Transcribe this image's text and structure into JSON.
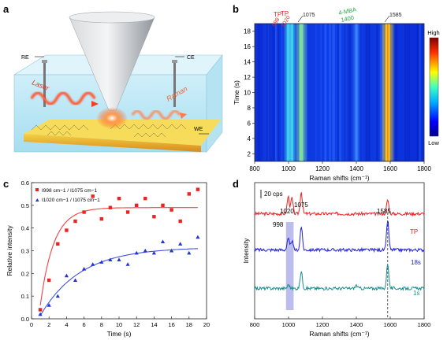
{
  "panels": {
    "a": {
      "letter": "a",
      "labels": {
        "re": "RE",
        "ce": "CE",
        "we": "WE",
        "laser": "Laser",
        "raman": "Raman"
      }
    },
    "b": {
      "letter": "b",
      "annotations": {
        "tp": "TP",
        "tp998": "998",
        "tp1020": "1020",
        "mba": "4-MBA",
        "mba1400": "1400",
        "p1075": "1075",
        "p1585": "1585"
      },
      "colorbar": {
        "high": "High",
        "low": "Low"
      }
    },
    "c": {
      "letter": "c",
      "legend": [
        {
          "text": "I998 cm−1 / I1075 cm−1",
          "color": "#ee2222"
        },
        {
          "text": "I1020 cm−1 / I1075 cm−1",
          "color": "#2233dd"
        }
      ]
    },
    "d": {
      "letter": "d",
      "scalebar": "20 cps",
      "peak_labels": {
        "p998": "998",
        "p1020": "1020",
        "p1075": "1075",
        "p1585": "1585"
      },
      "trace_labels": {
        "tp": "TP",
        "t18": "18s",
        "t1": "1s"
      }
    }
  },
  "chart_data": [
    {
      "panel": "b",
      "type": "heatmap",
      "xlabel": "Raman shifts (cm⁻¹)",
      "ylabel": "Time (s)",
      "xlim": [
        800,
        1800
      ],
      "ylim": [
        1,
        19
      ],
      "xticks": [
        800,
        1000,
        1200,
        1400,
        1600,
        1800
      ],
      "yticks": [
        2,
        4,
        6,
        8,
        10,
        12,
        14,
        16,
        18
      ],
      "bands": [
        {
          "x": 998,
          "intensity": 0.45
        },
        {
          "x": 1020,
          "intensity": 0.4
        },
        {
          "x": 1075,
          "intensity": 0.85
        },
        {
          "x": 1400,
          "intensity": 0.15
        },
        {
          "x": 1585,
          "intensity": 1.0
        }
      ]
    },
    {
      "panel": "c",
      "type": "scatter",
      "xlabel": "Time (s)",
      "ylabel": "Relative intensity",
      "xlim": [
        0,
        20
      ],
      "ylim": [
        0,
        0.6
      ],
      "xticks": [
        0,
        2,
        4,
        6,
        8,
        10,
        12,
        14,
        16,
        18,
        20
      ],
      "yticks": [
        0.0,
        0.1,
        0.2,
        0.3,
        0.4,
        0.5,
        0.6
      ],
      "series": [
        {
          "name": "I998 cm−1 / I1075 cm−1",
          "color": "#ee2222",
          "marker": "square",
          "x": [
            1,
            2,
            3,
            4,
            5,
            6,
            7,
            8,
            9,
            10,
            11,
            12,
            13,
            14,
            15,
            16,
            17,
            18,
            19
          ],
          "y": [
            0.04,
            0.17,
            0.33,
            0.39,
            0.43,
            0.47,
            0.54,
            0.44,
            0.49,
            0.53,
            0.47,
            0.5,
            0.53,
            0.45,
            0.5,
            0.48,
            0.43,
            0.55,
            0.57
          ],
          "fit": {
            "a": 0.49,
            "k": 0.65,
            "x0": 0.8
          }
        },
        {
          "name": "I1020 cm−1 / I1075 cm−1",
          "color": "#2233dd",
          "marker": "triangle",
          "x": [
            1,
            2,
            3,
            4,
            5,
            6,
            7,
            8,
            9,
            10,
            11,
            12,
            13,
            14,
            15,
            16,
            17,
            18,
            19
          ],
          "y": [
            0.02,
            0.06,
            0.1,
            0.19,
            0.17,
            0.22,
            0.24,
            0.25,
            0.26,
            0.26,
            0.24,
            0.29,
            0.3,
            0.29,
            0.34,
            0.3,
            0.33,
            0.29,
            0.36
          ],
          "fit": {
            "a": 0.315,
            "k": 0.22,
            "x0": 0.8
          }
        }
      ]
    },
    {
      "panel": "d",
      "type": "line",
      "xlabel": "Raman shifts (cm⁻¹)",
      "ylabel": "Intensity",
      "xlim": [
        800,
        1800
      ],
      "xticks": [
        800,
        1000,
        1200,
        1400,
        1600,
        1800
      ],
      "dashed_line_x": 1585,
      "highlight_range": [
        985,
        1030
      ],
      "series": [
        {
          "name": "TP",
          "color": "#ee2222",
          "baseline": 0.82,
          "peaks": [
            {
              "x": 998,
              "h": 0.55
            },
            {
              "x": 1020,
              "h": 0.5
            },
            {
              "x": 1075,
              "h": 0.7
            },
            {
              "x": 1585,
              "h": 0.45
            }
          ]
        },
        {
          "name": "18s",
          "color": "#2222dd",
          "baseline": 0.52,
          "peaks": [
            {
              "x": 998,
              "h": 0.35
            },
            {
              "x": 1020,
              "h": 0.3
            },
            {
              "x": 1075,
              "h": 0.75
            },
            {
              "x": 1585,
              "h": 0.95
            }
          ]
        },
        {
          "name": "1s",
          "color": "#1a8f8f",
          "baseline": 0.2,
          "peaks": [
            {
              "x": 1000,
              "h": 0.12
            },
            {
              "x": 1075,
              "h": 0.55
            },
            {
              "x": 1400,
              "h": 0.1
            },
            {
              "x": 1585,
              "h": 0.8
            }
          ]
        }
      ]
    }
  ]
}
